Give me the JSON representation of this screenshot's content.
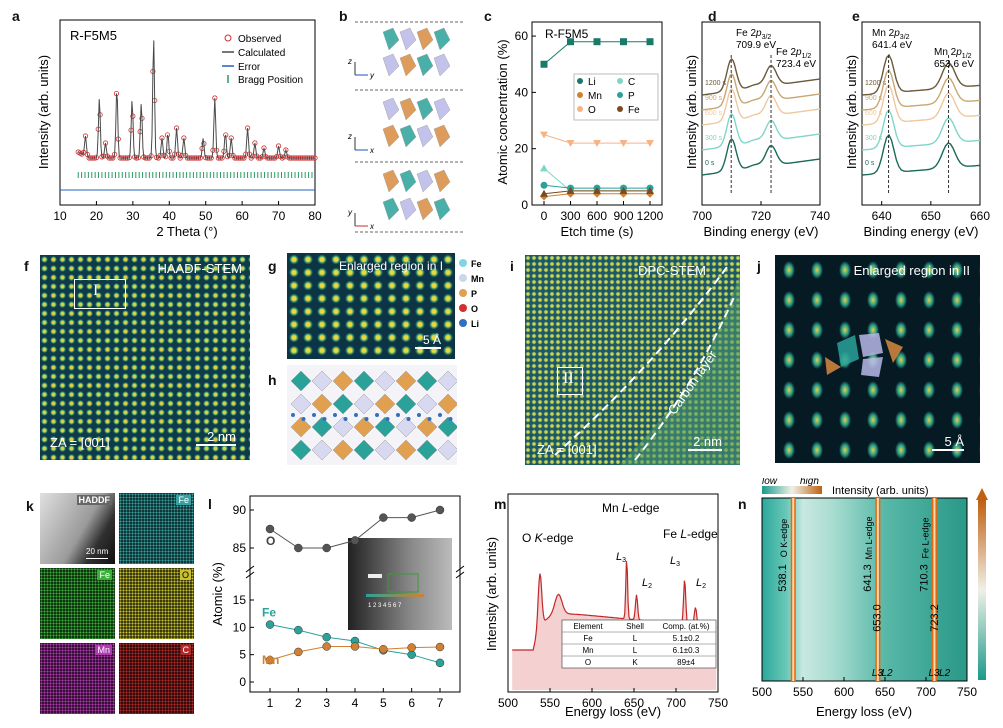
{
  "panels": {
    "a": {
      "label": "a",
      "sample": "R-F5M5",
      "ylabel": "Intensity (arb. units)",
      "xlabel": "2 Theta (°)",
      "legend": [
        "Observed",
        "Calculated",
        "Error",
        "Bragg Position"
      ],
      "xticks": [
        "10",
        "20",
        "30",
        "40",
        "50",
        "60",
        "70",
        "80"
      ]
    },
    "b": {
      "label": "b",
      "axes": [
        [
          "z",
          "y"
        ],
        [
          "z",
          "x"
        ],
        [
          "y",
          "x"
        ]
      ]
    },
    "c": {
      "label": "c",
      "sample": "R-F5M5",
      "ylabel": "Atomic concentration (%)",
      "xlabel": "Etch time (s)",
      "yticks": [
        "0",
        "20",
        "40",
        "60"
      ],
      "xticks": [
        "0",
        "300",
        "600",
        "900",
        "1200"
      ]
    },
    "d": {
      "label": "d",
      "ylabel": "Intensity (arb. units)",
      "xlabel": "Binding energy (eV)",
      "peak1": "Fe 2p3/2",
      "peak1_val": "709.9 eV",
      "peak2": "Fe 2p1/2",
      "peak2_val": "723.4 eV",
      "xticks": [
        "700",
        "720",
        "740"
      ],
      "times": [
        "1200 s",
        "900 s",
        "600 s",
        "300 s",
        "0 s"
      ]
    },
    "e": {
      "label": "e",
      "ylabel": "Intensity (arb. units)",
      "xlabel": "Binding energy (eV)",
      "peak1": "Mn 2p3/2",
      "peak1_val": "641.4 eV",
      "peak2": "Mn 2p1/2",
      "peak2_val": "653.6 eV",
      "xticks": [
        "640",
        "650",
        "660"
      ],
      "times": [
        "1200 s",
        "900 s",
        "600 s",
        "300 s",
        "0 s"
      ]
    },
    "f": {
      "label": "f",
      "title": "HAADF-STEM",
      "za": "ZA = [001]",
      "scale": "2 nm",
      "region": "I"
    },
    "g": {
      "label": "g",
      "title": "Enlarged region in I",
      "scale": "5 Å",
      "legend": [
        "Fe",
        "Mn",
        "P",
        "O",
        "Li"
      ]
    },
    "h": {
      "label": "h"
    },
    "i": {
      "label": "i",
      "title": "DPC-STEM",
      "za": "ZA = [001]",
      "scale": "2 nm",
      "region": "II",
      "carbon": "Carbon layer"
    },
    "j": {
      "label": "j",
      "title": "Enlarged region in II",
      "scale": "5 Å"
    },
    "k": {
      "label": "k",
      "tiles": [
        "HADDF",
        "Fe",
        "Fe",
        "O",
        "Mn",
        "C"
      ],
      "scale": "20 nm"
    },
    "l": {
      "label": "l",
      "ylabel": "Atomic (%)",
      "xticks": [
        "1",
        "2",
        "3",
        "4",
        "5",
        "6",
        "7"
      ],
      "ytop": [
        "85",
        "90"
      ],
      "ybot": [
        "0",
        "5",
        "10",
        "15"
      ],
      "series": [
        "O",
        "Fe",
        "Mn"
      ]
    },
    "m": {
      "label": "m",
      "ylabel": "Intensity (arb. units)",
      "xlabel": "Energy loss (eV)",
      "edges": [
        "O K-edge",
        "Mn L-edge",
        "Fe L-edge"
      ],
      "xticks": [
        "500",
        "550",
        "600",
        "650",
        "700",
        "750"
      ],
      "table": {
        "headers": [
          "Element",
          "Shell",
          "Comp. (at.%)"
        ],
        "rows": [
          [
            "Fe",
            "L",
            "5.1±0.2"
          ],
          [
            "Mn",
            "L",
            "6.1±0.3"
          ],
          [
            "O",
            "K",
            "89±4"
          ]
        ]
      }
    },
    "n": {
      "label": "n",
      "low": "low",
      "high": "high",
      "title": "Intensity (arb. units)",
      "xlabel": "Energy loss (eV)",
      "xticks": [
        "500",
        "550",
        "600",
        "650",
        "700",
        "750"
      ],
      "edges": [
        "O K-edge",
        "Mn L-edge",
        "Fe L-edge"
      ],
      "values": [
        "538.1",
        "641.3",
        "653.0",
        "710.3",
        "723.2"
      ],
      "shells": [
        "L3",
        "L2",
        "L3",
        "L2"
      ]
    }
  },
  "chart_data": [
    {
      "type": "line",
      "panel": "c",
      "title": "R-F5M5",
      "xlabel": "Etch time (s)",
      "ylabel": "Atomic concentration (%)",
      "x": [
        0,
        300,
        600,
        900,
        1200
      ],
      "ylim": [
        0,
        65
      ],
      "series": [
        {
          "name": "Li",
          "values": [
            50,
            58,
            58,
            58,
            58
          ],
          "color": "#1a7a6a"
        },
        {
          "name": "C",
          "values": [
            13,
            5,
            5,
            5,
            5
          ],
          "color": "#7fd6c8"
        },
        {
          "name": "Mn",
          "values": [
            3,
            4,
            4,
            4,
            4
          ],
          "color": "#d08030"
        },
        {
          "name": "P",
          "values": [
            7,
            6,
            6,
            6,
            6
          ],
          "color": "#2aa29a"
        },
        {
          "name": "O",
          "values": [
            25,
            22,
            22,
            22,
            22
          ],
          "color": "#f5b486"
        },
        {
          "name": "Fe",
          "values": [
            4,
            5,
            5,
            5,
            5
          ],
          "color": "#7a4a20"
        }
      ]
    },
    {
      "type": "line",
      "panel": "l",
      "ylabel": "Atomic (%)",
      "x": [
        1,
        2,
        3,
        4,
        5,
        6,
        7
      ],
      "series": [
        {
          "name": "O",
          "values": [
            87.5,
            85,
            85,
            86,
            89,
            89,
            90
          ],
          "color": "#555555"
        },
        {
          "name": "Fe",
          "values": [
            10.5,
            9.5,
            8.2,
            7.5,
            5.8,
            5.0,
            3.5
          ],
          "color": "#2aa29a"
        },
        {
          "name": "Mn",
          "values": [
            4.0,
            5.5,
            6.5,
            6.5,
            6.0,
            6.3,
            6.4
          ],
          "color": "#d08030"
        }
      ]
    }
  ]
}
